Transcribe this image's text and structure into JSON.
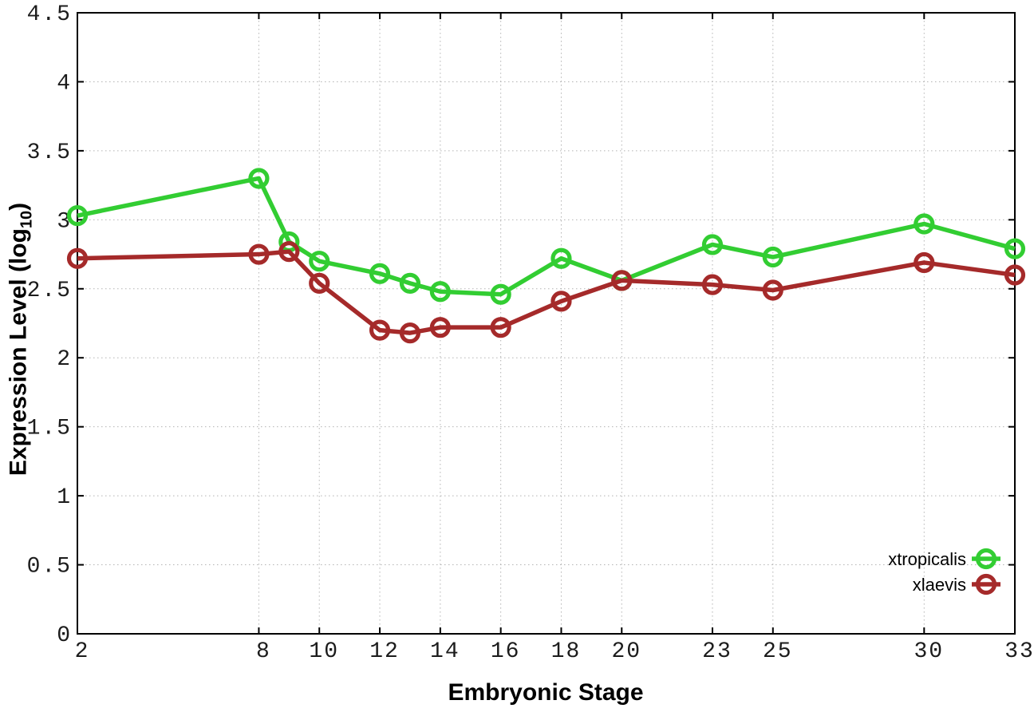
{
  "chart_data": {
    "type": "line",
    "title": "",
    "xlabel": "Embryonic Stage",
    "ylabel": "Expression Level (log10)",
    "ylabel_parts": {
      "base": "Expression Level (log",
      "sub": "10",
      "close": ")"
    },
    "xlim": [
      2,
      33
    ],
    "ylim": [
      0,
      4.5
    ],
    "grid": true,
    "xticks": [
      2,
      8,
      10,
      12,
      14,
      16,
      18,
      20,
      23,
      25,
      30,
      33
    ],
    "xtick_labels": [
      "2",
      "8",
      "10",
      "12",
      "14",
      "16",
      "18",
      "20",
      "23",
      "25",
      "30",
      "33"
    ],
    "yticks": [
      0,
      0.5,
      1,
      1.5,
      2,
      2.5,
      3,
      3.5,
      4,
      4.5
    ],
    "ytick_labels": [
      "0",
      "0.5",
      "1",
      "1.5",
      "2",
      "2.5",
      "3",
      "3.5",
      "4",
      "4.5"
    ],
    "x": [
      2,
      8,
      9,
      10,
      12,
      13,
      14,
      16,
      18,
      20,
      23,
      25,
      30,
      33
    ],
    "series": [
      {
        "name": "xtropicalis",
        "color": "#32cd32",
        "marker": "open-circle",
        "values": [
          3.03,
          3.3,
          2.84,
          2.7,
          2.61,
          2.54,
          2.48,
          2.46,
          2.72,
          2.56,
          2.82,
          2.73,
          2.97,
          2.79
        ]
      },
      {
        "name": "xlaevis",
        "color": "#a52a2a",
        "marker": "open-circle",
        "values": [
          2.72,
          2.75,
          2.77,
          2.54,
          2.2,
          2.18,
          2.22,
          2.22,
          2.41,
          2.56,
          2.53,
          2.49,
          2.69,
          2.6
        ]
      }
    ],
    "legend_position": "bottom-right"
  },
  "colors": {
    "background": "#ffffff",
    "grid": "#b3b3b3",
    "axis": "#000000",
    "tick_text": "#1c1c1c"
  }
}
